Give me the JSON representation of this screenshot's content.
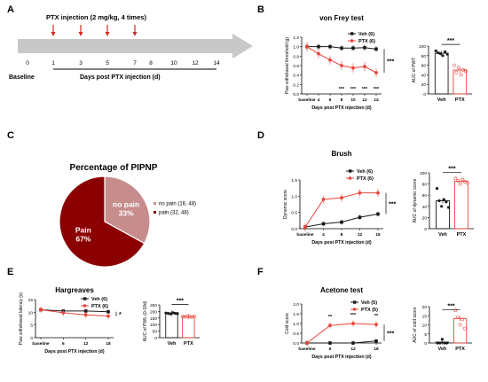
{
  "colors": {
    "veh": "#1a1a1a",
    "ptx": "#e8453c",
    "pie_pain": "#8b0000",
    "pie_nopain": "#c78d8d",
    "arrow": "#c8c8c8",
    "inj": "#d62a1f"
  },
  "panels": {
    "A": {
      "letter": "A",
      "injection_label": "PTX injection (2 mg/kg, 4 times)",
      "baseline_label": "Baseline",
      "days_label": "Days post PTX injection (d)",
      "ticks": [
        "0",
        "1",
        "3",
        "5",
        "7",
        "8",
        "10",
        "12",
        "14"
      ],
      "injection_days": [
        1,
        3,
        5,
        7
      ]
    },
    "B": {
      "letter": "B"
    },
    "C": {
      "letter": "C"
    },
    "D": {
      "letter": "D"
    },
    "E": {
      "letter": "E"
    },
    "F": {
      "letter": "F"
    }
  },
  "chart_data": [
    {
      "id": "vonfrey",
      "type": "line",
      "title": "von Frey test",
      "ylabel": "Paw withdrawal threshold (g)",
      "xlabel": "Days post  PTX injection (d)",
      "categories": [
        "baseline",
        "4",
        "6",
        "8",
        "10",
        "12",
        "14"
      ],
      "ylim": [
        0,
        1.2
      ],
      "yticks": [
        "0.0",
        "0.2",
        "0.4",
        "0.6",
        "0.8",
        "1.0",
        "1.2"
      ],
      "series": [
        {
          "name": "Veh (6)",
          "values": [
            1.0,
            1.0,
            1.0,
            0.97,
            0.97,
            0.98,
            0.95
          ]
        },
        {
          "name": "PTX (6)",
          "values": [
            1.0,
            0.85,
            0.72,
            0.6,
            0.55,
            0.58,
            0.45
          ]
        }
      ],
      "point_stars": [
        "",
        "",
        "",
        "***",
        "***",
        "***",
        "***"
      ],
      "end_sig": "***"
    },
    {
      "id": "vonfrey_auc",
      "type": "bar",
      "ylabel": "AUC of PWT",
      "categories": [
        "Veh",
        "PTX"
      ],
      "ylim": [
        0,
        100
      ],
      "yticks": [
        "0",
        "20",
        "40",
        "60",
        "80",
        "100"
      ],
      "values": [
        85,
        50
      ],
      "sig": "***",
      "points": [
        [
          90,
          86,
          84,
          80,
          88,
          83
        ],
        [
          60,
          45,
          55,
          40,
          50,
          48
        ]
      ]
    },
    {
      "id": "pie",
      "type": "pie",
      "title": "Percentage of PIPNP",
      "slices": [
        {
          "label": "Pain",
          "pct": "67%",
          "value": 67
        },
        {
          "label": "no pain",
          "pct": "33%",
          "value": 33
        }
      ],
      "legend": [
        "no pain (16, 48)",
        "pain (32, 48)"
      ]
    },
    {
      "id": "brush",
      "type": "line",
      "title": "Brush",
      "ylabel": "Dynamic score",
      "xlabel": "Days post  PTX injection (d)",
      "categories": [
        "baseline",
        "4",
        "8",
        "12",
        "16"
      ],
      "ylim": [
        0,
        1.5
      ],
      "yticks": [
        "0.0",
        "0.5",
        "1.0",
        "1.5"
      ],
      "series": [
        {
          "name": "Veh (6)",
          "values": [
            0.05,
            0.15,
            0.2,
            0.35,
            0.45
          ]
        },
        {
          "name": "PTX (6)",
          "values": [
            0.05,
            0.9,
            0.95,
            1.1,
            1.1
          ]
        }
      ],
      "end_sig": "***"
    },
    {
      "id": "brush_auc",
      "type": "bar",
      "ylabel": "AUC of dynamic score",
      "categories": [
        "Veh",
        "PTX"
      ],
      "ylim": [
        0,
        100
      ],
      "yticks": [
        "0",
        "20",
        "40",
        "60",
        "80",
        "100"
      ],
      "values": [
        50,
        85
      ],
      "sig": "***",
      "points": [
        [
          72,
          50,
          40,
          52,
          48,
          38
        ],
        [
          90,
          86,
          80,
          88,
          84,
          82
        ]
      ]
    },
    {
      "id": "hargreaves",
      "type": "line",
      "title": "Hargreaves",
      "ylabel": "Paw withdrawal latency (s)",
      "xlabel": "Days post  PTX injection (d)",
      "categories": [
        "baseline",
        "6",
        "12",
        "18"
      ],
      "ylim": [
        0,
        15
      ],
      "yticks": [
        "0",
        "5",
        "10",
        "15"
      ],
      "series": [
        {
          "name": "Veh (6)",
          "values": [
            11.0,
            10.5,
            10.5,
            10.2
          ]
        },
        {
          "name": "PTX (6)",
          "values": [
            11.0,
            9.8,
            9.0,
            8.5
          ]
        }
      ],
      "end_sig": "*"
    },
    {
      "id": "hargreaves_auc",
      "type": "bar",
      "ylabel": "AUC of PWL (0-18d)",
      "categories": [
        "Veh",
        "PTX"
      ],
      "ylim": [
        0,
        250
      ],
      "yticks": [
        "0",
        "50",
        "100",
        "150",
        "200",
        "250"
      ],
      "values": [
        185,
        160
      ],
      "sig": "***",
      "points": [
        [
          188,
          185,
          182,
          190,
          186,
          184
        ],
        [
          162,
          158,
          165,
          160,
          155,
          163
        ]
      ]
    },
    {
      "id": "acetone",
      "type": "line",
      "title": "Acetone test",
      "ylabel": "Cold score",
      "xlabel": "Days post  PTX injection (d)",
      "categories": [
        "baseline",
        "6",
        "12",
        "18"
      ],
      "ylim": [
        0,
        2.0
      ],
      "yticks": [
        "0.0",
        "0.5",
        "1.0",
        "1.5",
        "2.0"
      ],
      "series": [
        {
          "name": "Veh (5)",
          "values": [
            0.0,
            0.0,
            0.0,
            0.1
          ]
        },
        {
          "name": "PTX (5)",
          "values": [
            0.0,
            0.9,
            1.0,
            0.95
          ]
        }
      ],
      "point_stars": [
        "",
        "**",
        "***",
        "**"
      ],
      "end_sig": "***"
    },
    {
      "id": "acetone_auc",
      "type": "bar",
      "ylabel": "AUC of cold score",
      "categories": [
        "Veh",
        "PTX"
      ],
      "ylim": [
        0,
        20
      ],
      "yticks": [
        "0",
        "5",
        "10",
        "15",
        "20"
      ],
      "values": [
        0.5,
        13.5
      ],
      "sig": "***",
      "points": [
        [
          0,
          0,
          2,
          0,
          0
        ],
        [
          18,
          14,
          10,
          13,
          8
        ]
      ]
    }
  ]
}
